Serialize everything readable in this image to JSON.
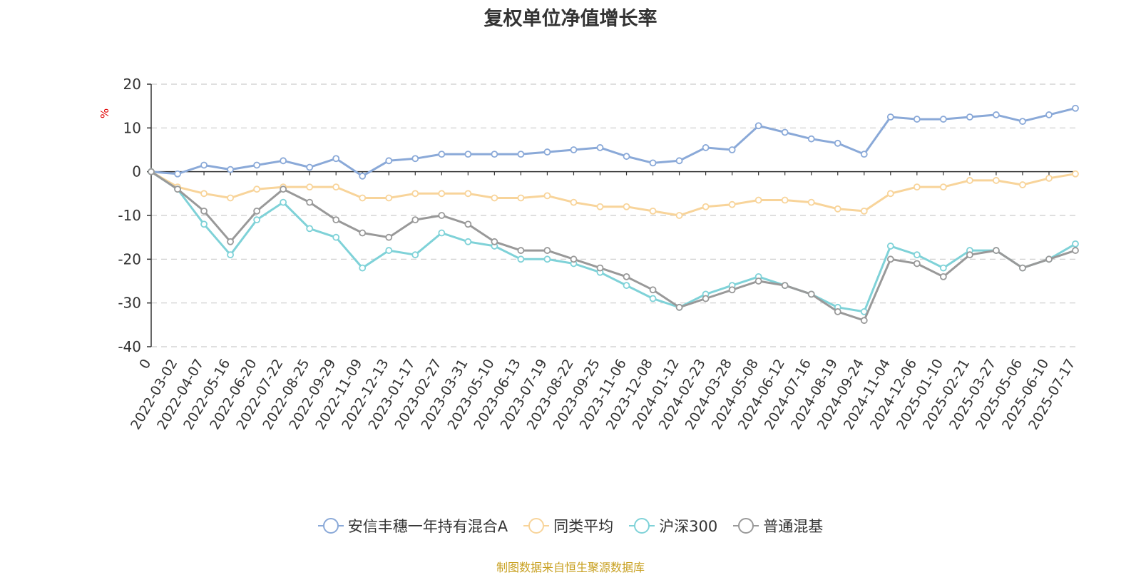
{
  "title": "复权单位净值增长率",
  "source_note": "制图数据来自恒生聚源数据库",
  "chart_data": {
    "type": "line",
    "title": "复权单位净值增长率",
    "ylabel": "%",
    "xlabel": "",
    "ylim": [
      -40,
      20
    ],
    "yticks": [
      20,
      10,
      0,
      -10,
      -20,
      -30,
      -40
    ],
    "grid": true,
    "legend_position": "bottom",
    "categories": [
      "0",
      "2022-03-02",
      "2022-04-07",
      "2022-05-16",
      "2022-06-20",
      "2022-07-22",
      "2022-08-25",
      "2022-09-29",
      "2022-11-09",
      "2022-12-13",
      "2023-01-17",
      "2023-02-27",
      "2023-03-31",
      "2023-05-10",
      "2023-06-13",
      "2023-07-19",
      "2023-08-22",
      "2023-09-25",
      "2023-11-06",
      "2023-12-08",
      "2024-01-12",
      "2024-02-23",
      "2024-03-28",
      "2024-05-08",
      "2024-06-12",
      "2024-07-16",
      "2024-08-19",
      "2024-09-24",
      "2024-11-04",
      "2024-12-06",
      "2025-01-10",
      "2025-02-21",
      "2025-03-27",
      "2025-05-06",
      "2025-06-10",
      "2025-07-17"
    ],
    "series": [
      {
        "name": "安信丰穗一年持有混合A",
        "color": "#8aa9d8",
        "values": [
          0,
          -0.5,
          1.5,
          0.5,
          1.5,
          2.5,
          1.0,
          3.0,
          -1.0,
          2.5,
          3.0,
          4.0,
          4.0,
          4.0,
          4.0,
          4.5,
          5.0,
          5.5,
          3.5,
          2.0,
          2.5,
          5.5,
          5.0,
          10.5,
          9.0,
          7.5,
          6.5,
          4.0,
          12.5,
          12.0,
          12.0,
          12.5,
          13.0,
          11.5,
          13.0,
          14.5
        ]
      },
      {
        "name": "同类平均",
        "color": "#f8d49a",
        "values": [
          0,
          -3.5,
          -5.0,
          -6.0,
          -4.0,
          -3.5,
          -3.5,
          -3.5,
          -6.0,
          -6.0,
          -5.0,
          -5.0,
          -5.0,
          -6.0,
          -6.0,
          -5.5,
          -7.0,
          -8.0,
          -8.0,
          -9.0,
          -10.0,
          -8.0,
          -7.5,
          -6.5,
          -6.5,
          -7.0,
          -8.5,
          -9.0,
          -5.0,
          -3.5,
          -3.5,
          -2.0,
          -2.0,
          -3.0,
          -1.5,
          -0.5
        ]
      },
      {
        "name": "沪深300",
        "color": "#7fd2d8",
        "values": [
          0,
          -4.0,
          -12.0,
          -19.0,
          -11.0,
          -7.0,
          -13.0,
          -15.0,
          -22.0,
          -18.0,
          -19.0,
          -14.0,
          -16.0,
          -17.0,
          -20.0,
          -20.0,
          -21.0,
          -23.0,
          -26.0,
          -29.0,
          -31.0,
          -28.0,
          -26.0,
          -24.0,
          -26.0,
          -28.0,
          -31.0,
          -32.0,
          -17.0,
          -19.0,
          -22.0,
          -18.0,
          -18.0,
          -22.0,
          -20.0,
          -16.5
        ]
      },
      {
        "name": "普通混基",
        "color": "#999999",
        "values": [
          0,
          -4.0,
          -9.0,
          -16.0,
          -9.0,
          -4.0,
          -7.0,
          -11.0,
          -14.0,
          -15.0,
          -11.0,
          -10.0,
          -12.0,
          -16.0,
          -18.0,
          -18.0,
          -20.0,
          -22.0,
          -24.0,
          -27.0,
          -31.0,
          -29.0,
          -27.0,
          -25.0,
          -26.0,
          -28.0,
          -32.0,
          -34.0,
          -20.0,
          -21.0,
          -24.0,
          -19.0,
          -18.0,
          -22.0,
          -20.0,
          -18.0
        ]
      }
    ]
  }
}
